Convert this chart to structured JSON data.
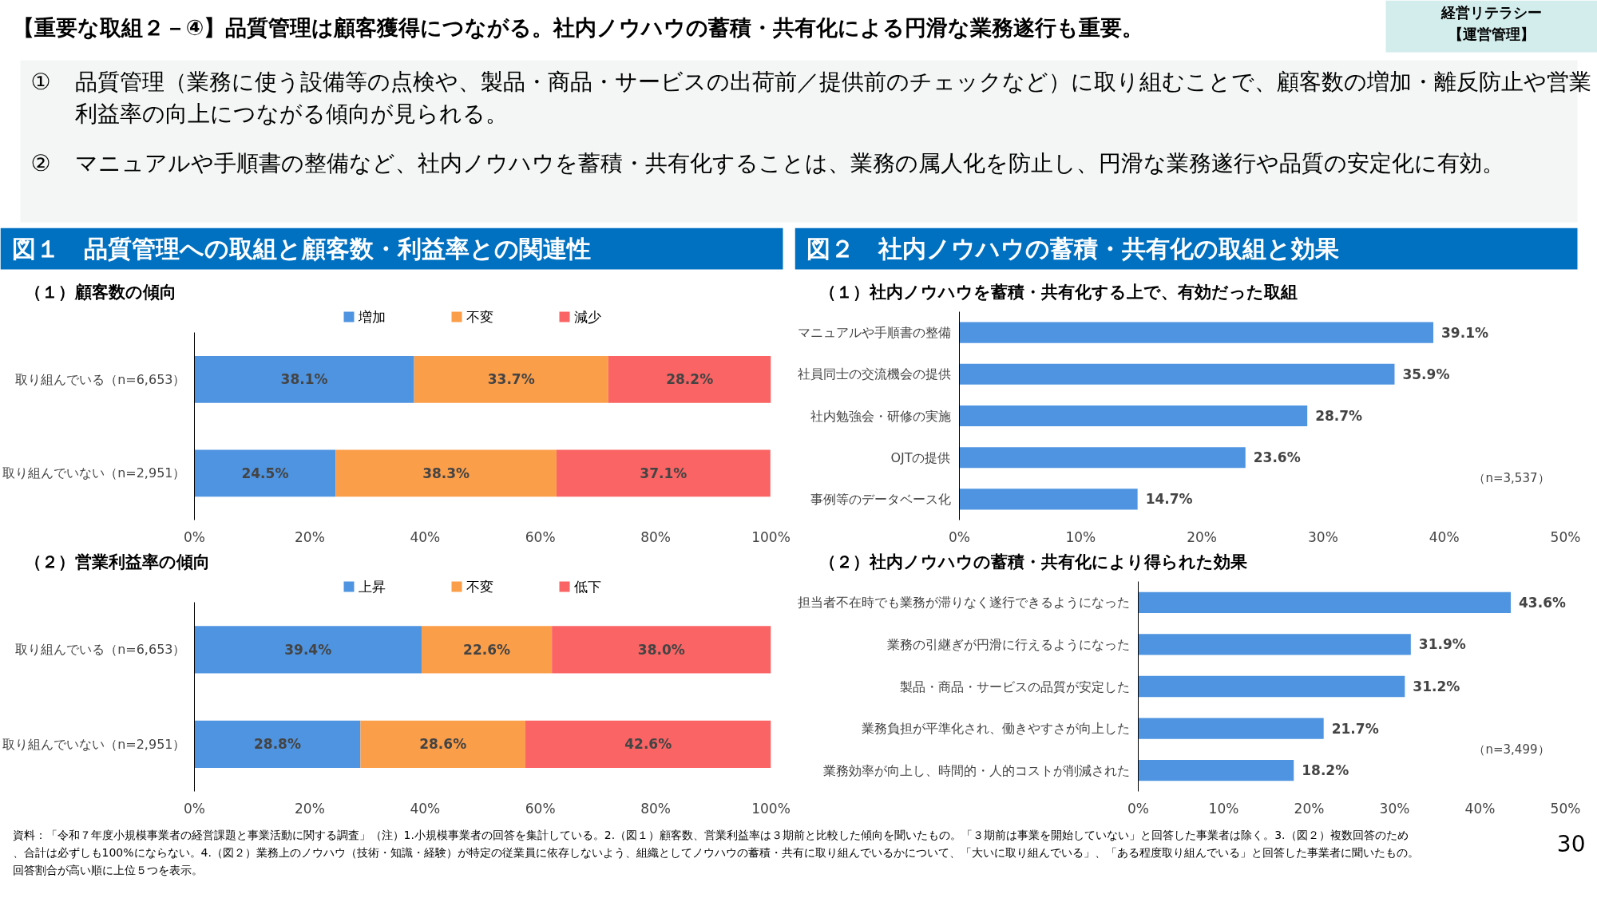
{
  "chart_data": [
    {
      "type": "other",
      "title": "【重要な取組２－④】品質管理は顧客獲得につながる。社内ノウハウの蓄積・共有化による円滑な業務遂行も重要。",
      "annotations": [
        "経営リテラシー",
        "【運営管理】",
        "① 品質管理（業務に使う設備等の点検や、製品・商品・サービスの出荷前／提供前のチェックなど）に取り組むことで、顧客数の増加・離反防止や営業利益率の向上につながる傾向が見られる。",
        "② マニュアルや手順書の整備など、社内ノウハウを蓄積・共有化することは、業務の属人化を防止し、円滑な業務遂行や品質の安定化に有効。",
        "資料：「令和７年度小規模事業者の経営課題と事業活動に関する調査」（注）1.小規模事業者の回答を集計している。2.（図１）顧客数、営業利益率は３期前と比較した傾向を聞いたもの。「３期前は事業を開始していない」と回答した事業者は除く。3.（図２）複数回答のため、合計は必ずしも100%にならない。4.（図２）業務上のノウハウ（技術・知識・経験）が特定の従業員に依存しないよう、組織としてノウハウの蓄積・共有に取り組んでいるかについて、「大いに取り組んでいる」、「ある程度取り組んでいる」と回答した事業者に聞いたもの。回答割合が高い順に上位５つを表示。",
        "30"
      ]
    },
    {
      "type": "bar",
      "title": "図１　品質管理への取組と顧客数・利益率との関連性",
      "subtitle": "（１）顧客数の傾向",
      "orientation": "horizontal",
      "stacked": true,
      "legend": "top",
      "categories": [
        "取り組んでいる（n=6,653）",
        "取り組んでいない（n=2,951）"
      ],
      "xlim": [
        0,
        100
      ],
      "xticks": [
        {
          "value": 0,
          "label": "0%"
        },
        {
          "value": 20,
          "label": "20%"
        },
        {
          "value": 40,
          "label": "40%"
        },
        {
          "value": 60,
          "label": "60%"
        },
        {
          "value": 80,
          "label": "80%"
        },
        {
          "value": 100,
          "label": "100%"
        }
      ],
      "series": [
        {
          "name": "増加",
          "color": "#4f94e0",
          "values": [
            38.1,
            24.5
          ],
          "value_labels": [
            "38.1%",
            "24.5%"
          ]
        },
        {
          "name": "不変",
          "color": "#fb9e4a",
          "values": [
            33.7,
            38.3
          ],
          "value_labels": [
            "33.7%",
            "38.3%"
          ]
        },
        {
          "name": "減少",
          "color": "#fa6464",
          "values": [
            28.2,
            37.1
          ],
          "value_labels": [
            "28.2%",
            "37.1%"
          ]
        }
      ]
    },
    {
      "type": "bar",
      "title": "（２）営業利益率の傾向",
      "orientation": "horizontal",
      "stacked": true,
      "legend": "top",
      "categories": [
        "取り組んでいる（n=6,653）",
        "取り組んでいない（n=2,951）"
      ],
      "xlim": [
        0,
        100
      ],
      "xticks": [
        {
          "value": 0,
          "label": "0%"
        },
        {
          "value": 20,
          "label": "20%"
        },
        {
          "value": 40,
          "label": "40%"
        },
        {
          "value": 60,
          "label": "60%"
        },
        {
          "value": 80,
          "label": "80%"
        },
        {
          "value": 100,
          "label": "100%"
        }
      ],
      "series": [
        {
          "name": "上昇",
          "color": "#4f94e0",
          "values": [
            39.4,
            28.8
          ],
          "value_labels": [
            "39.4%",
            "28.8%"
          ]
        },
        {
          "name": "不変",
          "color": "#fb9e4a",
          "values": [
            22.6,
            28.6
          ],
          "value_labels": [
            "22.6%",
            "28.6%"
          ]
        },
        {
          "name": "低下",
          "color": "#fa6464",
          "values": [
            38.0,
            42.6
          ],
          "value_labels": [
            "38.0%",
            "42.6%"
          ]
        }
      ]
    },
    {
      "type": "bar",
      "title": "図２　社内ノウハウの蓄積・共有化の取組と効果",
      "subtitle": "（１）社内ノウハウを蓄積・共有化する上で、有効だった取組",
      "orientation": "horizontal",
      "categories": [
        "マニュアルや手順書の整備",
        "社員同士の交流機会の提供",
        "社内勉強会・研修の実施",
        "OJTの提供",
        "事例等のデータベース化"
      ],
      "xlim": [
        0,
        50
      ],
      "xticks": [
        {
          "value": 0,
          "label": "0%"
        },
        {
          "value": 10,
          "label": "10%"
        },
        {
          "value": 20,
          "label": "20%"
        },
        {
          "value": 30,
          "label": "30%"
        },
        {
          "value": 40,
          "label": "40%"
        },
        {
          "value": 50,
          "label": "50%"
        }
      ],
      "color": "#4f94e0",
      "values": [
        39.1,
        35.9,
        28.7,
        23.6,
        14.7
      ],
      "value_labels": [
        "39.1%",
        "35.9%",
        "28.7%",
        "23.6%",
        "14.7%"
      ],
      "annotations": [
        "（n=3,537）"
      ]
    },
    {
      "type": "bar",
      "title": "（２）社内ノウハウの蓄積・共有化により得られた効果",
      "orientation": "horizontal",
      "categories": [
        "担当者不在時でも業務が滞りなく遂行できるようになった",
        "業務の引継ぎが円滑に行えるようになった",
        "製品・商品・サービスの品質が安定した",
        "業務負担が平準化され、働きやすさが向上した",
        "業務効率が向上し、時間的・人的コストが削減された"
      ],
      "xlim": [
        0,
        50
      ],
      "xticks": [
        {
          "value": 0,
          "label": "0%"
        },
        {
          "value": 10,
          "label": "10%"
        },
        {
          "value": 20,
          "label": "20%"
        },
        {
          "value": 30,
          "label": "30%"
        },
        {
          "value": 40,
          "label": "40%"
        },
        {
          "value": 50,
          "label": "50%"
        }
      ],
      "color": "#4f94e0",
      "values": [
        43.6,
        31.9,
        31.2,
        21.7,
        18.2
      ],
      "value_labels": [
        "43.6%",
        "31.9%",
        "31.2%",
        "21.7%",
        "18.2%"
      ],
      "annotations": [
        "（n=3,499）"
      ]
    }
  ]
}
